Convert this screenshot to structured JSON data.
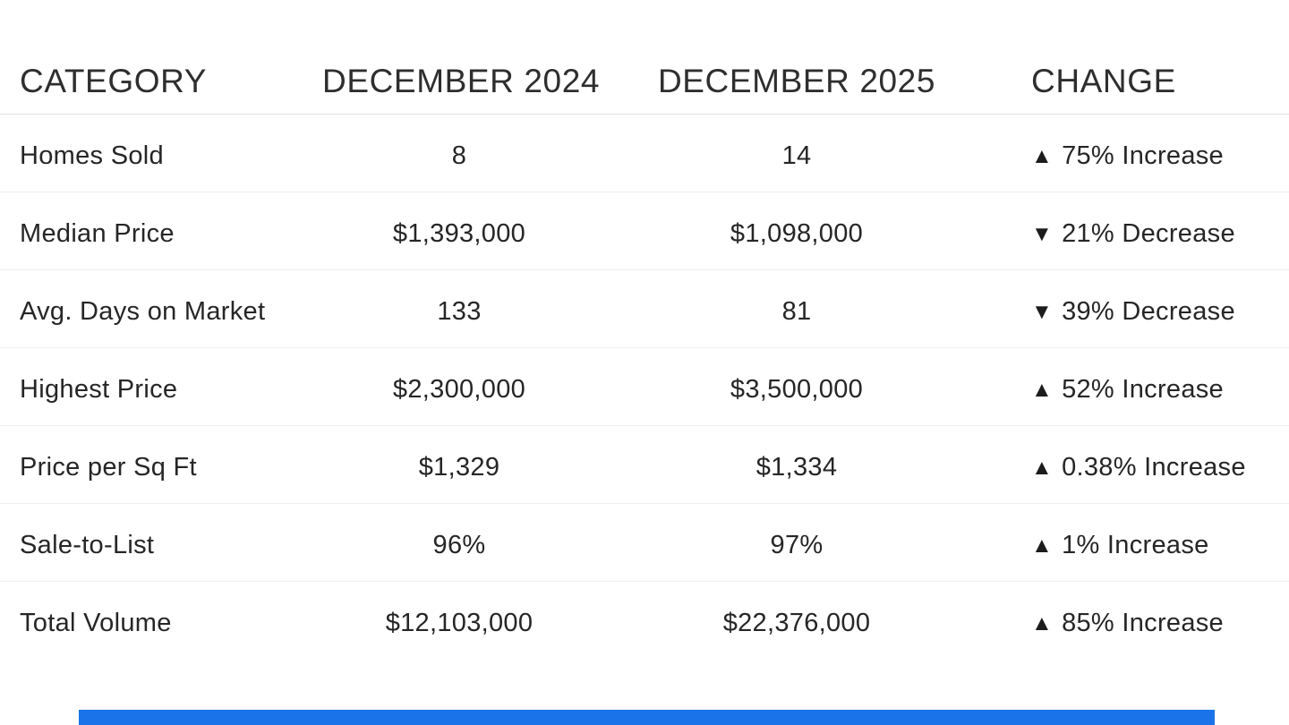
{
  "page": {
    "background_color": "#ffffff",
    "text_color": "#262626"
  },
  "table": {
    "columns": [
      {
        "label": "CATEGORY"
      },
      {
        "label": "DECEMBER 2024"
      },
      {
        "label": "DECEMBER 2025"
      },
      {
        "label": "CHANGE"
      }
    ],
    "rows": [
      {
        "category": "Homes Sold",
        "dec_2024": "8",
        "dec_2025": "14",
        "change_arrow": "▲",
        "change_label": "75% Increase",
        "change_direction": "increase"
      },
      {
        "category": "Median Price",
        "dec_2024": "$1,393,000",
        "dec_2025": "$1,098,000",
        "change_arrow": "▼",
        "change_label": "21% Decrease",
        "change_direction": "decrease"
      },
      {
        "category": "Avg. Days on Market",
        "dec_2024": "133",
        "dec_2025": "81",
        "change_arrow": "▼",
        "change_label": "39% Decrease",
        "change_direction": "decrease"
      },
      {
        "category": "Highest Price",
        "dec_2024": "$2,300,000",
        "dec_2025": "$3,500,000",
        "change_arrow": "▲",
        "change_label": "52% Increase",
        "change_direction": "increase"
      },
      {
        "category": "Price per Sq Ft",
        "dec_2024": "$1,329",
        "dec_2025": "$1,334",
        "change_arrow": "▲",
        "change_label": "0.38% Increase",
        "change_direction": "increase"
      },
      {
        "category": "Sale-to-List",
        "dec_2024": "96%",
        "dec_2025": "97%",
        "change_arrow": "▲",
        "change_label": "1% Increase",
        "change_direction": "increase"
      },
      {
        "category": "Total Volume",
        "dec_2024": "$12,103,000",
        "dec_2025": "$22,376,000",
        "change_arrow": "▲",
        "change_label": "85% Increase",
        "change_direction": "increase"
      }
    ]
  },
  "footer": {
    "accent_bar_color": "#1a73e8"
  }
}
